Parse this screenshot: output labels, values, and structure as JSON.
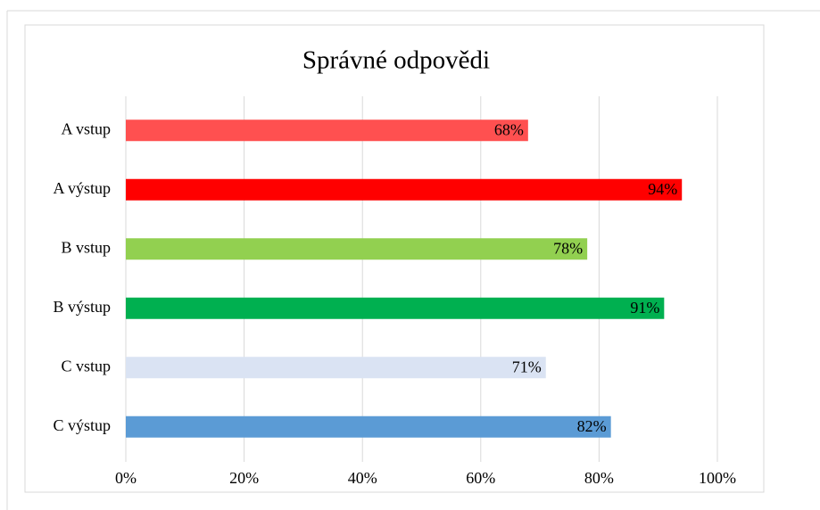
{
  "chart_data": {
    "type": "hbar",
    "title": "Správné odpovědi",
    "categories": [
      "A vstup",
      "A výstup",
      "B vstup",
      "B výstup",
      "C vstup",
      "C výstup"
    ],
    "values": [
      68,
      94,
      78,
      91,
      71,
      82
    ],
    "value_labels": [
      "68%",
      "94%",
      "78%",
      "91%",
      "71%",
      "82%"
    ],
    "colors": [
      "#ff5050",
      "#ff0000",
      "#92d050",
      "#00b050",
      "#dae3f3",
      "#5b9bd5"
    ],
    "xlim": [
      0,
      100
    ],
    "xticks": [
      {
        "value": 0,
        "label": "0%"
      },
      {
        "value": 20,
        "label": "20%"
      },
      {
        "value": 40,
        "label": "40%"
      },
      {
        "value": 60,
        "label": "60%"
      },
      {
        "value": 80,
        "label": "80%"
      },
      {
        "value": 100,
        "label": "100%"
      }
    ],
    "grid": true
  }
}
